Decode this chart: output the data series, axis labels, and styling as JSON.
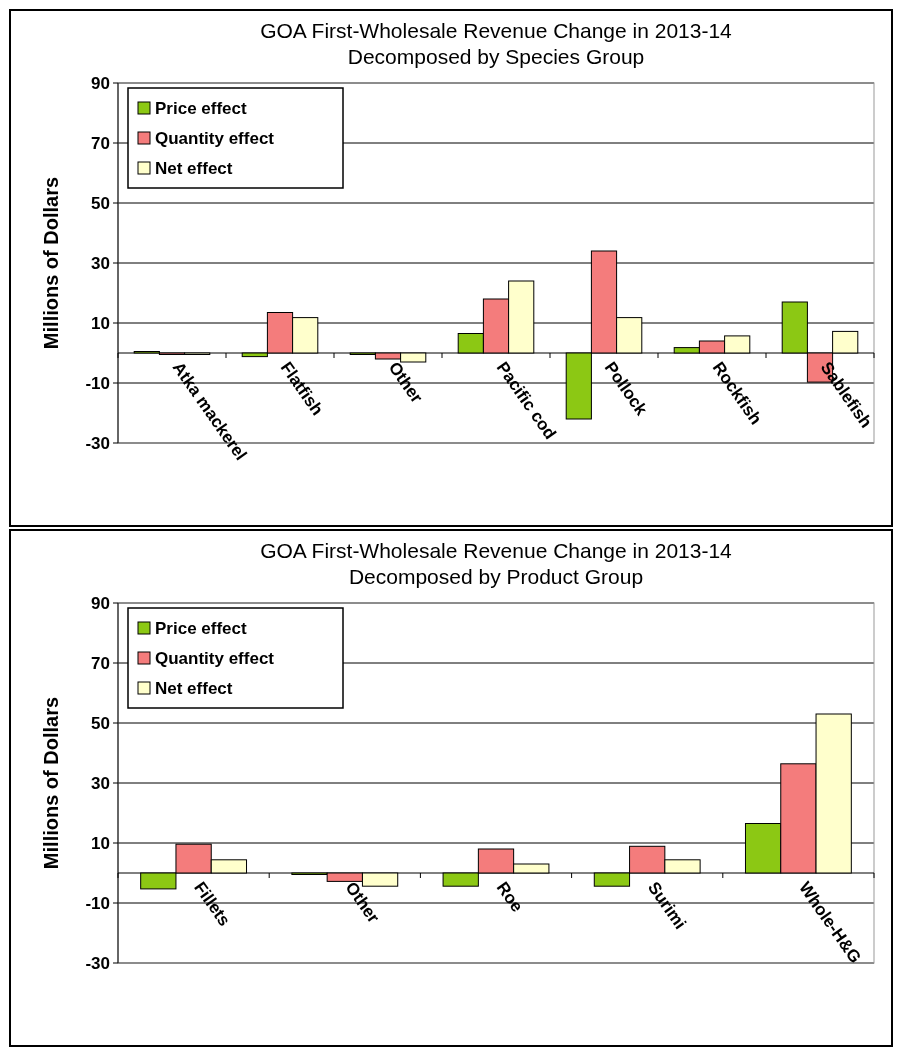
{
  "chart_data": [
    {
      "type": "bar",
      "title": "GOA First-Wholesale Revenue Change in 2013-14\nDecomposed by Species Group",
      "ylabel": "Millions  of Dollars",
      "categories": [
        "Atka mackerel",
        "Flatfish",
        "Other",
        "Pacific cod",
        "Pollock",
        "Rockfish",
        "Sablefish"
      ],
      "series": [
        {
          "name": "Price effect",
          "color": "#8cc814",
          "values": [
            0.5,
            -1.2,
            -0.5,
            6.5,
            -22,
            1.8,
            17
          ]
        },
        {
          "name": "Quantity effect",
          "color": "#f47c7c",
          "values": [
            -0.5,
            13.5,
            -2,
            18,
            34,
            4,
            -9.7
          ]
        },
        {
          "name": "Net effect",
          "color": "#ffffcc",
          "values": [
            -0.5,
            11.8,
            -3,
            24,
            11.8,
            5.7,
            7.2
          ]
        }
      ],
      "ylim": [
        -30,
        90
      ],
      "yticks": [
        -30,
        -10,
        10,
        30,
        50,
        70,
        90
      ],
      "grid": "y",
      "legend": "top left"
    },
    {
      "type": "bar",
      "title": "GOA First-Wholesale Revenue Change in 2013-14\nDecomposed by Product Group",
      "ylabel": "Millions  of Dollars",
      "categories": [
        "Fillets",
        "Other",
        "Roe",
        "Surimi",
        "Whole-H&G"
      ],
      "series": [
        {
          "name": "Price effect",
          "color": "#8cc814",
          "values": [
            -5.3,
            -0.5,
            -4.4,
            -4.4,
            16.5
          ]
        },
        {
          "name": "Quantity effect",
          "color": "#f47c7c",
          "values": [
            9.6,
            -2.8,
            8,
            8.9,
            36.4
          ]
        },
        {
          "name": "Net effect",
          "color": "#ffffcc",
          "values": [
            4.4,
            -4.4,
            3,
            4.4,
            53
          ]
        }
      ],
      "ylim": [
        -30,
        90
      ],
      "yticks": [
        -30,
        -10,
        10,
        30,
        50,
        70,
        90
      ],
      "grid": "y",
      "legend": "top left"
    }
  ]
}
